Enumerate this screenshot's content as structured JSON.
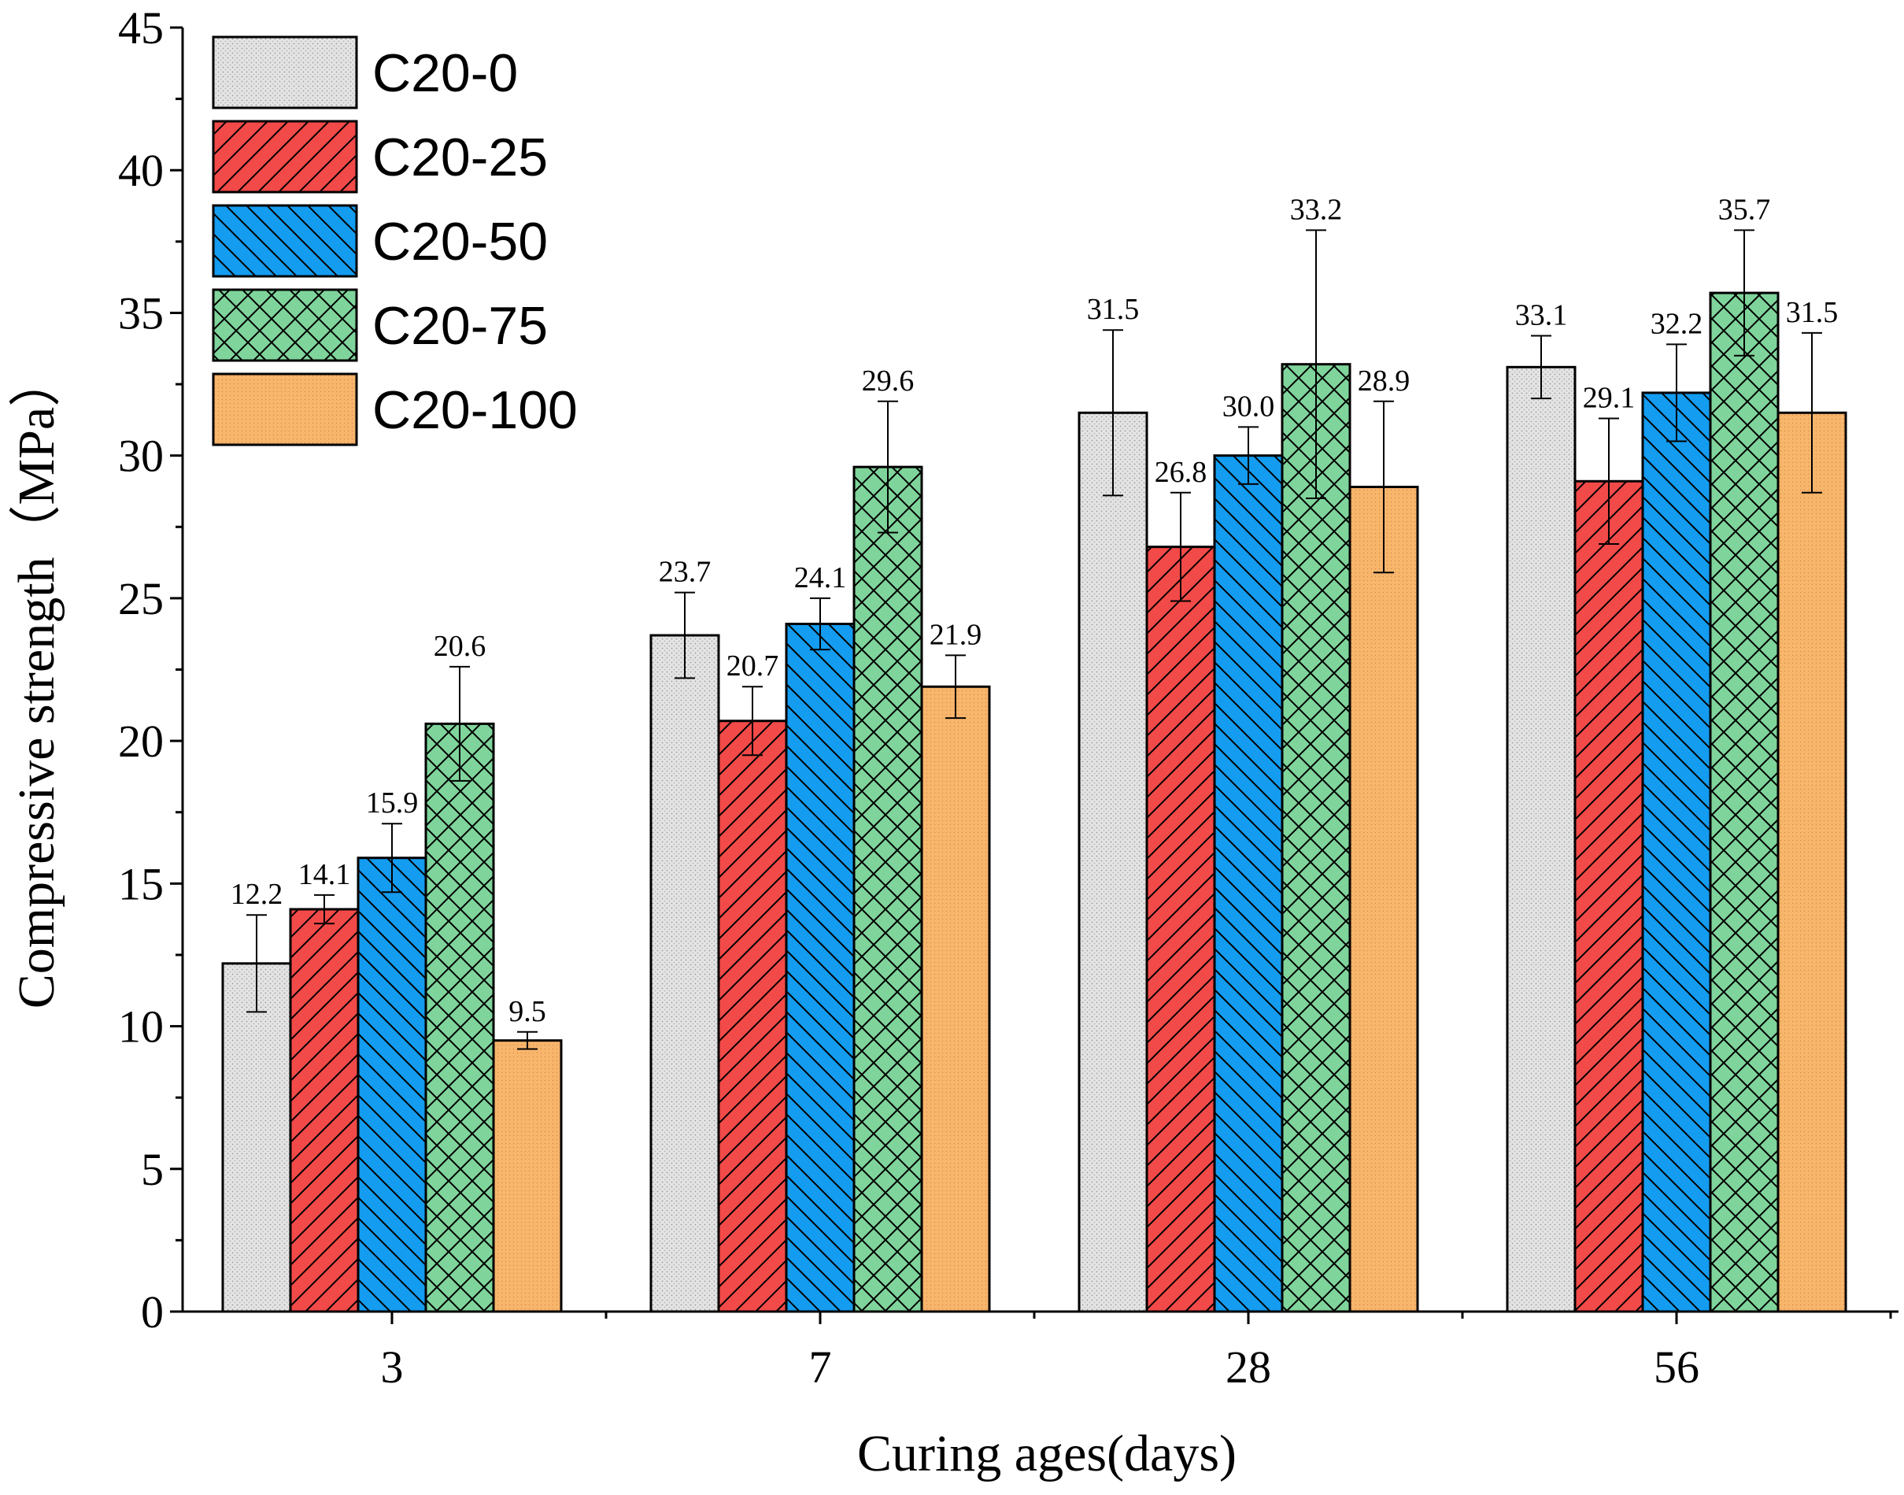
{
  "chart_data": {
    "type": "bar",
    "xlabel": "Curing ages(days)",
    "ylabel": "Compressive strength（MPa）",
    "ylim": [
      0,
      45
    ],
    "yticks": [
      0,
      5,
      10,
      15,
      20,
      25,
      30,
      35,
      40,
      45
    ],
    "categories": [
      "3",
      "7",
      "28",
      "56"
    ],
    "legend_position": "top-left",
    "series": [
      {
        "name": "C20-0",
        "color": "#e4e4e4",
        "pattern": "dots",
        "values": [
          12.2,
          23.7,
          31.5,
          33.1
        ],
        "labels": [
          "12.2",
          "23.7",
          "31.5",
          "33.1"
        ],
        "errors": [
          1.7,
          1.5,
          2.9,
          1.1
        ]
      },
      {
        "name": "C20-25",
        "color": "#f24a48",
        "pattern": "hatch-fwd",
        "values": [
          14.1,
          20.7,
          26.8,
          29.1
        ],
        "labels": [
          "14.1",
          "20.7",
          "26.8",
          "29.1"
        ],
        "errors": [
          0.5,
          1.2,
          1.9,
          2.2
        ]
      },
      {
        "name": "C20-50",
        "color": "#139cf0",
        "pattern": "hatch-back",
        "values": [
          15.9,
          24.1,
          30.0,
          32.2
        ],
        "labels": [
          "15.9",
          "24.1",
          "30.0",
          "32.2"
        ],
        "errors": [
          1.2,
          0.9,
          1.0,
          1.7
        ]
      },
      {
        "name": "C20-75",
        "color": "#7fd49b",
        "pattern": "crosshatch",
        "values": [
          20.6,
          29.6,
          33.2,
          35.7
        ],
        "labels": [
          "20.6",
          "29.6",
          "33.2",
          "35.7"
        ],
        "errors": [
          2.0,
          2.3,
          4.7,
          2.2
        ]
      },
      {
        "name": "C20-100",
        "color": "#f8b56c",
        "pattern": "fine-dots",
        "values": [
          9.5,
          21.9,
          28.9,
          31.5
        ],
        "labels": [
          "9.5",
          "21.9",
          "28.9",
          "31.5"
        ],
        "errors": [
          0.3,
          1.1,
          3.0,
          2.8
        ]
      }
    ]
  }
}
